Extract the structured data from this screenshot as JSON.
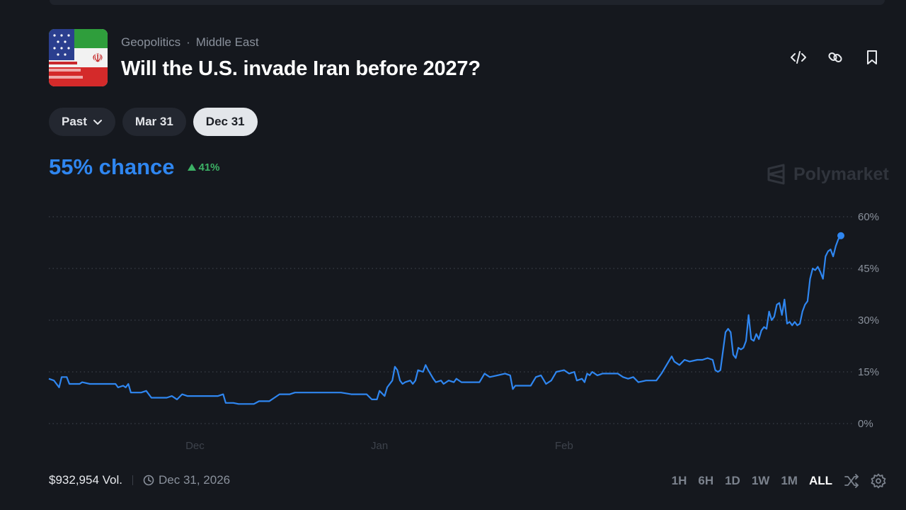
{
  "header": {
    "category": "Geopolitics",
    "separator": "·",
    "subcategory": "Middle East",
    "title": "Will the U.S. invade Iran before 2027?"
  },
  "actions": {
    "icons": [
      "code-embed-icon",
      "link-icon",
      "bookmark-icon"
    ]
  },
  "date_filters": {
    "past_label": "Past",
    "options": [
      "Mar 31",
      "Dec 31"
    ],
    "selected": "Dec 31"
  },
  "summary": {
    "chance_text": "55% chance",
    "change_text": "41%",
    "change_direction": "up"
  },
  "watermark": "Polymarket",
  "footer": {
    "volume": "$932,954 Vol.",
    "end_date": "Dec 31, 2026"
  },
  "time_ranges": {
    "options": [
      "1H",
      "6H",
      "1D",
      "1W",
      "1M",
      "ALL"
    ],
    "selected": "ALL"
  },
  "colors": {
    "accent": "#2f86f0",
    "positive": "#3cb165",
    "background": "#15181e"
  },
  "chart_data": {
    "type": "line",
    "series": [
      {
        "values": [
          [
            0,
            13
          ],
          [
            2,
            12.5
          ],
          [
            4,
            10.5
          ],
          [
            5,
            13.5
          ],
          [
            7,
            13.5
          ],
          [
            8,
            11.5
          ],
          [
            12,
            11.5
          ],
          [
            13,
            12
          ],
          [
            16,
            11.5
          ],
          [
            26,
            11.5
          ],
          [
            27,
            10.5
          ],
          [
            29,
            11
          ],
          [
            30,
            10.5
          ],
          [
            31,
            11.5
          ],
          [
            32,
            9
          ],
          [
            36,
            9
          ],
          [
            38,
            9.5
          ],
          [
            40,
            7.5
          ],
          [
            46,
            7.5
          ],
          [
            48,
            8
          ],
          [
            50,
            7
          ],
          [
            52,
            8.5
          ],
          [
            54,
            8
          ],
          [
            66,
            8
          ],
          [
            68,
            8.5
          ],
          [
            69,
            6
          ],
          [
            72,
            6
          ],
          [
            74,
            5.7
          ],
          [
            80,
            5.7
          ],
          [
            82,
            6.5
          ],
          [
            86,
            6.5
          ],
          [
            88,
            7.5
          ],
          [
            90,
            8.5
          ],
          [
            94,
            8.5
          ],
          [
            96,
            9
          ],
          [
            114,
            9
          ],
          [
            118,
            8.5
          ],
          [
            124,
            8.5
          ],
          [
            126,
            7
          ],
          [
            128,
            7
          ],
          [
            129,
            9.5
          ],
          [
            131,
            8
          ],
          [
            132,
            10.5
          ],
          [
            134,
            12.5
          ],
          [
            135,
            16.5
          ],
          [
            136,
            15.5
          ],
          [
            137,
            12.5
          ],
          [
            138,
            11.5
          ],
          [
            139,
            12
          ],
          [
            141,
            12.5
          ],
          [
            142,
            11.5
          ],
          [
            143,
            12.5
          ],
          [
            144,
            15.5
          ],
          [
            146,
            15
          ],
          [
            147,
            17
          ],
          [
            148,
            15.5
          ],
          [
            150,
            13
          ],
          [
            151,
            12
          ],
          [
            153,
            12.5
          ],
          [
            154,
            11.5
          ],
          [
            156,
            12.5
          ],
          [
            158,
            12
          ],
          [
            159,
            13
          ],
          [
            161,
            12
          ],
          [
            168,
            12
          ],
          [
            170,
            14.5
          ],
          [
            172,
            13.5
          ],
          [
            175,
            14
          ],
          [
            178,
            14.5
          ],
          [
            180,
            14
          ],
          [
            181,
            10
          ],
          [
            182,
            11
          ],
          [
            188,
            11
          ],
          [
            190,
            13.5
          ],
          [
            192,
            14
          ],
          [
            194,
            11.5
          ],
          [
            196,
            12.5
          ],
          [
            198,
            15
          ],
          [
            201,
            15.5
          ],
          [
            203,
            14.5
          ],
          [
            205,
            15
          ],
          [
            206,
            12.5
          ],
          [
            208,
            13
          ],
          [
            209,
            12
          ],
          [
            210,
            14.5
          ],
          [
            211,
            14
          ],
          [
            212,
            15
          ],
          [
            214,
            14
          ],
          [
            216,
            14.5
          ],
          [
            222,
            14.5
          ],
          [
            224,
            13.5
          ],
          [
            226,
            13
          ],
          [
            228,
            13.5
          ],
          [
            230,
            12
          ],
          [
            233,
            12.5
          ],
          [
            237,
            12.5
          ],
          [
            238,
            13.5
          ],
          [
            239,
            14.5
          ],
          [
            241,
            17
          ],
          [
            243,
            19.5
          ],
          [
            244,
            18
          ],
          [
            246,
            17
          ],
          [
            248,
            18.5
          ],
          [
            250,
            18
          ],
          [
            253,
            18.5
          ],
          [
            255,
            18.5
          ],
          [
            257,
            19
          ],
          [
            259,
            18.5
          ],
          [
            260,
            15.5
          ],
          [
            261,
            15
          ],
          [
            262,
            15.5
          ],
          [
            263,
            21
          ],
          [
            264,
            26.5
          ],
          [
            265,
            27.5
          ],
          [
            266,
            26.5
          ],
          [
            267,
            20
          ],
          [
            268,
            19
          ],
          [
            269,
            22
          ],
          [
            270,
            21.5
          ],
          [
            271,
            22
          ],
          [
            272,
            24
          ],
          [
            273,
            31.5
          ],
          [
            274,
            24.5
          ],
          [
            275,
            24
          ],
          [
            276,
            26
          ],
          [
            277,
            24.5
          ],
          [
            278,
            27
          ],
          [
            279,
            28
          ],
          [
            280,
            27.5
          ],
          [
            281,
            32.5
          ],
          [
            282,
            30
          ],
          [
            283,
            31
          ],
          [
            284,
            34.5
          ],
          [
            285,
            35
          ],
          [
            286,
            31.5
          ],
          [
            287,
            36
          ],
          [
            288,
            29
          ],
          [
            289,
            29.5
          ],
          [
            290,
            28.5
          ],
          [
            291,
            29.5
          ],
          [
            292,
            28.5
          ],
          [
            293,
            29
          ],
          [
            294,
            32.5
          ],
          [
            295,
            34.5
          ],
          [
            296,
            35.5
          ],
          [
            297,
            42
          ],
          [
            298,
            45
          ],
          [
            299,
            44.5
          ],
          [
            300,
            45.5
          ],
          [
            301,
            44
          ],
          [
            302,
            42
          ],
          [
            303,
            48.5
          ],
          [
            304,
            50
          ],
          [
            305,
            50.5
          ],
          [
            306,
            48.5
          ],
          [
            307,
            51.5
          ],
          [
            308,
            53.5
          ],
          [
            309,
            54.5
          ]
        ]
      }
    ],
    "xtick_labels": [
      "Dec",
      "Jan",
      "Feb"
    ],
    "xtick_positions": [
      57,
      129,
      201
    ],
    "xlim": [
      0,
      309
    ],
    "ylim": [
      0,
      60
    ],
    "ytick_values": [
      0,
      15,
      30,
      45,
      60
    ],
    "ytick_labels": [
      "0%",
      "15%",
      "30%",
      "45%",
      "60%"
    ],
    "grid": true,
    "grid_style": "dotted"
  }
}
